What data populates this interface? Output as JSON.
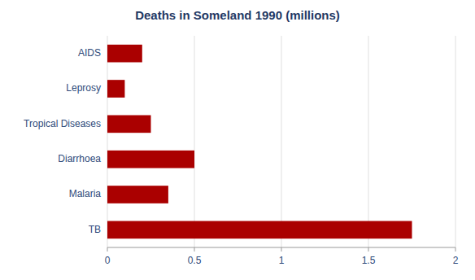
{
  "chart_data": {
    "type": "bar",
    "orientation": "horizontal",
    "title": "Deaths in Someland 1990 (millions)",
    "categories": [
      "TB",
      "Malaria",
      "Diarrhoea",
      "Tropical Diseases",
      "Leprosy",
      "AIDS"
    ],
    "values": [
      1.75,
      0.35,
      0.5,
      0.25,
      0.1,
      0.2
    ],
    "color": "#aa0000",
    "xlim": [
      0,
      2
    ],
    "xticks": [
      0,
      0.5,
      1,
      1.5,
      2
    ],
    "grid": true
  }
}
